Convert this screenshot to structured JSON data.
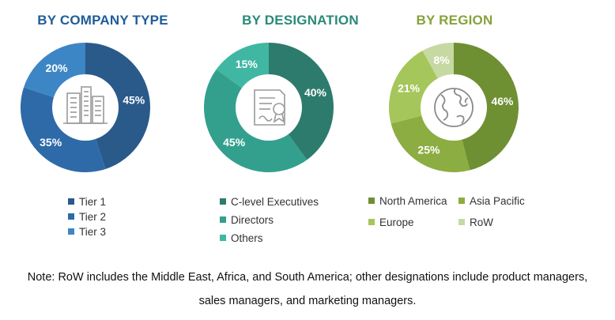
{
  "chart_data": [
    {
      "type": "pie",
      "title": "BY COMPANY TYPE",
      "title_color": "#1f5d99",
      "icon": "office-buildings-icon",
      "categories": [
        "Tier 1",
        "Tier 2",
        "Tier 3"
      ],
      "values": [
        45,
        35,
        20
      ],
      "labels": [
        "45%",
        "35%",
        "20%"
      ],
      "colors": [
        "#2a5a8a",
        "#2e6aa8",
        "#3d86c6"
      ],
      "start_angle": 0
    },
    {
      "type": "pie",
      "title": "BY DESIGNATION",
      "title_color": "#2a8a79",
      "icon": "certificate-document-icon",
      "categories": [
        "C-level Executives",
        "Directors",
        "Others"
      ],
      "values": [
        40,
        45,
        15
      ],
      "labels": [
        "40%",
        "45%",
        "15%"
      ],
      "colors": [
        "#2d7b6c",
        "#33a08d",
        "#40b7a3"
      ],
      "start_angle": 0
    },
    {
      "type": "pie",
      "title": "BY REGION",
      "title_color": "#86a23b",
      "icon": "globe-icon",
      "categories": [
        "North America",
        "Asia Pacific",
        "Europe",
        "RoW"
      ],
      "values": [
        46,
        25,
        21,
        8
      ],
      "labels": [
        "46%",
        "25%",
        "21%",
        "8%"
      ],
      "colors": [
        "#6f8f33",
        "#8cad41",
        "#a5c65a",
        "#c7d9a2"
      ],
      "start_angle": 0
    }
  ],
  "note": {
    "line1": "Note: RoW includes the Middle East, Africa, and South America; other designations include product managers,",
    "line2": "sales managers, and marketing managers."
  }
}
